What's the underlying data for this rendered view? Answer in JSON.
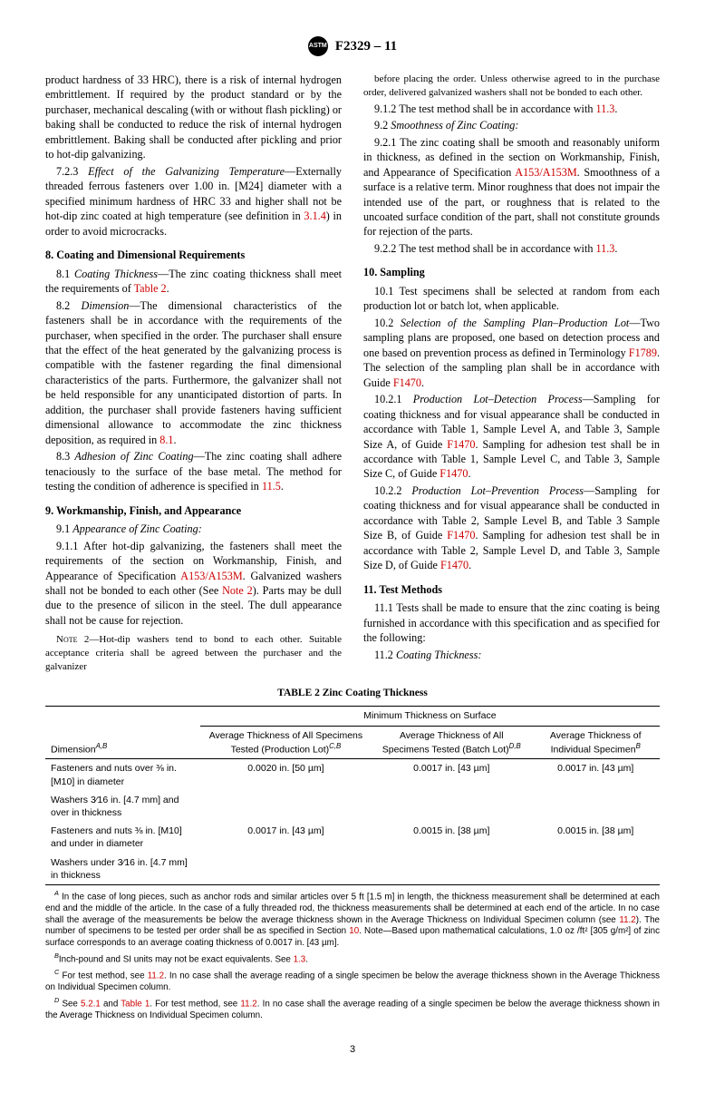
{
  "header": {
    "designation": "F2329 – 11"
  },
  "col1": {
    "p1": "product hardness of 33 HRC), there is a risk of internal hydrogen embrittlement. If required by the product standard or by the purchaser, mechanical descaling (with or without flash pickling) or baking shall be conducted to reduce the risk of internal hydrogen embrittlement. Baking shall be conducted after pickling and prior to hot-dip galvanizing.",
    "p2a": "7.2.3 ",
    "p2b": "Effect of the Galvanizing Temperature",
    "p2c": "—Externally threaded ferrous fasteners over 1.00 in. [M24] diameter with a specified minimum hardness of HRC 33 and higher shall not be hot-dip zinc coated at high temperature (see definition in ",
    "p2link": "3.1.4",
    "p2d": ") in order to avoid microcracks.",
    "h8": "8. Coating and Dimensional Requirements",
    "p81a": "8.1 ",
    "p81b": "Coating Thickness",
    "p81c": "—The zinc coating thickness shall meet the requirements of ",
    "p81link": "Table 2",
    "p81d": ".",
    "p82a": "8.2 ",
    "p82b": "Dimension",
    "p82c": "—The dimensional characteristics of the fasteners shall be in accordance with the requirements of the purchaser, when specified in the order. The purchaser shall ensure that the effect of the heat generated by the galvanizing process is compatible with the fastener regarding the final dimensional characteristics of the parts. Furthermore, the galvanizer shall not be held responsible for any unanticipated distortion of parts. In addition, the purchaser shall provide fasteners having sufficient dimensional allowance to accommodate the zinc thickness deposition, as required in ",
    "p82link": "8.1",
    "p82d": ".",
    "p83a": "8.3 ",
    "p83b": "Adhesion of Zinc Coating",
    "p83c": "—The zinc coating shall adhere tenaciously to the surface of the base metal. The method for testing the condition of adherence is specified in ",
    "p83link": "11.5",
    "p83d": ".",
    "h9": "9. Workmanship, Finish, and Appearance",
    "p91a": "9.1 ",
    "p91b": "Appearance of Zinc Coating:",
    "p911a": "9.1.1 After hot-dip galvanizing, the fasteners shall meet the requirements of the section on Workmanship, Finish, and Appearance of Specification ",
    "p911link": "A153/A153M",
    "p911b": ". Galvanized washers shall not be bonded to each other (See ",
    "p911link2": "Note 2",
    "p911c": "). Parts may be dull due to the presence of silicon in the steel. The dull appearance shall not be cause for rejection.",
    "note2a": "Note",
    "note2b": " 2—Hot-dip washers tend to bond to each other. Suitable acceptance criteria shall be agreed between the purchaser and the galvanizer"
  },
  "col2": {
    "p1": "before placing the order. Unless otherwise agreed to in the purchase order, delivered galvanized washers shall not be bonded to each other.",
    "p912a": "9.1.2 The test method shall be in accordance with ",
    "p912link": "11.3",
    "p912b": ".",
    "p92a": "9.2 ",
    "p92b": "Smoothness of Zinc Coating:",
    "p921a": "9.2.1 The zinc coating shall be smooth and reasonably uniform in thickness, as defined in the section on Workmanship, Finish, and Appearance of Specification ",
    "p921link": "A153/A153M",
    "p921b": ". Smoothness of a surface is a relative term. Minor roughness that does not impair the intended use of the part, or roughness that is related to the uncoated surface condition of the part, shall not constitute grounds for rejection of the parts.",
    "p922a": "9.2.2 The test method shall be in accordance with ",
    "p922link": "11.3",
    "p922b": ".",
    "h10": "10. Sampling",
    "p101": "10.1 Test specimens shall be selected at random from each production lot or batch lot, when applicable.",
    "p102a": "10.2 ",
    "p102b": "Selection of the Sampling Plan–Production Lot",
    "p102c": "—Two sampling plans are proposed, one based on detection process and one based on prevention process as defined in Terminology ",
    "p102link1": "F1789",
    "p102d": ". The selection of the sampling plan shall be in accordance with Guide ",
    "p102link2": "F1470",
    "p102e": ".",
    "p1021a": "10.2.1 ",
    "p1021b": "Production Lot–Detection Process",
    "p1021c": "—Sampling for coating thickness and for visual appearance shall be conducted in accordance with Table 1, Sample Level A, and Table 3, Sample Size A, of Guide ",
    "p1021link1": "F1470",
    "p1021d": ". Sampling for adhesion test shall be in accordance with Table 1, Sample Level C, and Table 3, Sample Size C, of Guide ",
    "p1021link2": "F1470",
    "p1021e": ".",
    "p1022a": "10.2.2 ",
    "p1022b": "Production Lot–Prevention Process",
    "p1022c": "—Sampling for coating thickness and for visual appearance shall be conducted in accordance with Table 2, Sample Level B, and Table 3 Sample Size B, of Guide ",
    "p1022link1": "F1470",
    "p1022d": ". Sampling for adhesion test shall be in accordance with Table 2, Sample Level D, and Table 3, Sample Size D, of Guide ",
    "p1022link2": "F1470",
    "p1022e": ".",
    "h11": "11. Test Methods",
    "p111": "11.1 Tests shall be made to ensure that the zinc coating is being furnished in accordance with this specification and as specified for the following:",
    "p112a": "11.2 ",
    "p112b": "Coating Thickness:"
  },
  "table": {
    "title": "TABLE 2 Zinc Coating Thickness",
    "span_header": "Minimum Thickness on Surface",
    "h_dim_a": "Dimension",
    "h_dim_b": "A,B",
    "h_c1a": "Average Thickness of All Specimens Tested (Production Lot)",
    "h_c1b": "C,B",
    "h_c2a": "Average Thickness of All Specimens Tested (Batch Lot)",
    "h_c2b": "D,B",
    "h_c3a": "Average Thickness of Individual Specimen",
    "h_c3b": "B",
    "r1_d": "Fasteners and nuts over ⅜ in. [M10] in diameter",
    "r1_c1": "0.0020 in. [50 µm]",
    "r1_c2": "0.0017 in. [43 µm]",
    "r1_c3": "0.0017 in. [43 µm]",
    "r2_d": "Washers 3⁄16 in. [4.7 mm] and over in thickness",
    "r3_d": "Fasteners and nuts ⅜ in. [M10] and under in diameter",
    "r3_c1": "0.0017 in. [43 µm]",
    "r3_c2": "0.0015 in. [38 µm]",
    "r3_c3": "0.0015 in. [38 µm]",
    "r4_d": "Washers under 3⁄16 in. [4.7 mm] in thickness"
  },
  "footnotes": {
    "fa_sup": "A",
    "fa": " In the case of long pieces, such as anchor rods and similar articles over 5 ft [1.5 m] in length, the thickness measurement shall be determined at each end and the middle of the article. In the case of a fully threaded rod, the thickness measurements shall be determined at each end of the article. In no case shall the average of the measurements be below the average thickness shown in the Average Thickness on Individual Specimen column (see ",
    "fa_link": "11.2",
    "fa2": "). The number of specimens to be tested per order shall be as specified in Section ",
    "fa_link2": "10",
    "fa3": ". Note—Based upon mathematical calculations, 1.0 oz /ft² [305 g/m²] of zinc surface corresponds to an average coating thickness of 0.0017 in. [43 µm].",
    "fb_sup": "B",
    "fb": "Inch-pound and SI units may not be exact equivalents. See ",
    "fb_link": "1.3",
    "fb2": ".",
    "fc_sup": "C",
    "fc": " For test method, see ",
    "fc_link": "11.2",
    "fc2": ". In no case shall the average reading of a single specimen be below the average thickness shown in the Average Thickness on Individual Specimen column.",
    "fd_sup": "D",
    "fd": " See ",
    "fd_link1": "5.2.1",
    "fd_mid": " and ",
    "fd_link2": "Table 1",
    "fd2": ". For test method, see ",
    "fd_link3": "11.2",
    "fd3": ". In no case shall the average reading of a single specimen be below the average thickness shown in the Average Thickness on Individual Specimen column."
  },
  "page_num": "3"
}
